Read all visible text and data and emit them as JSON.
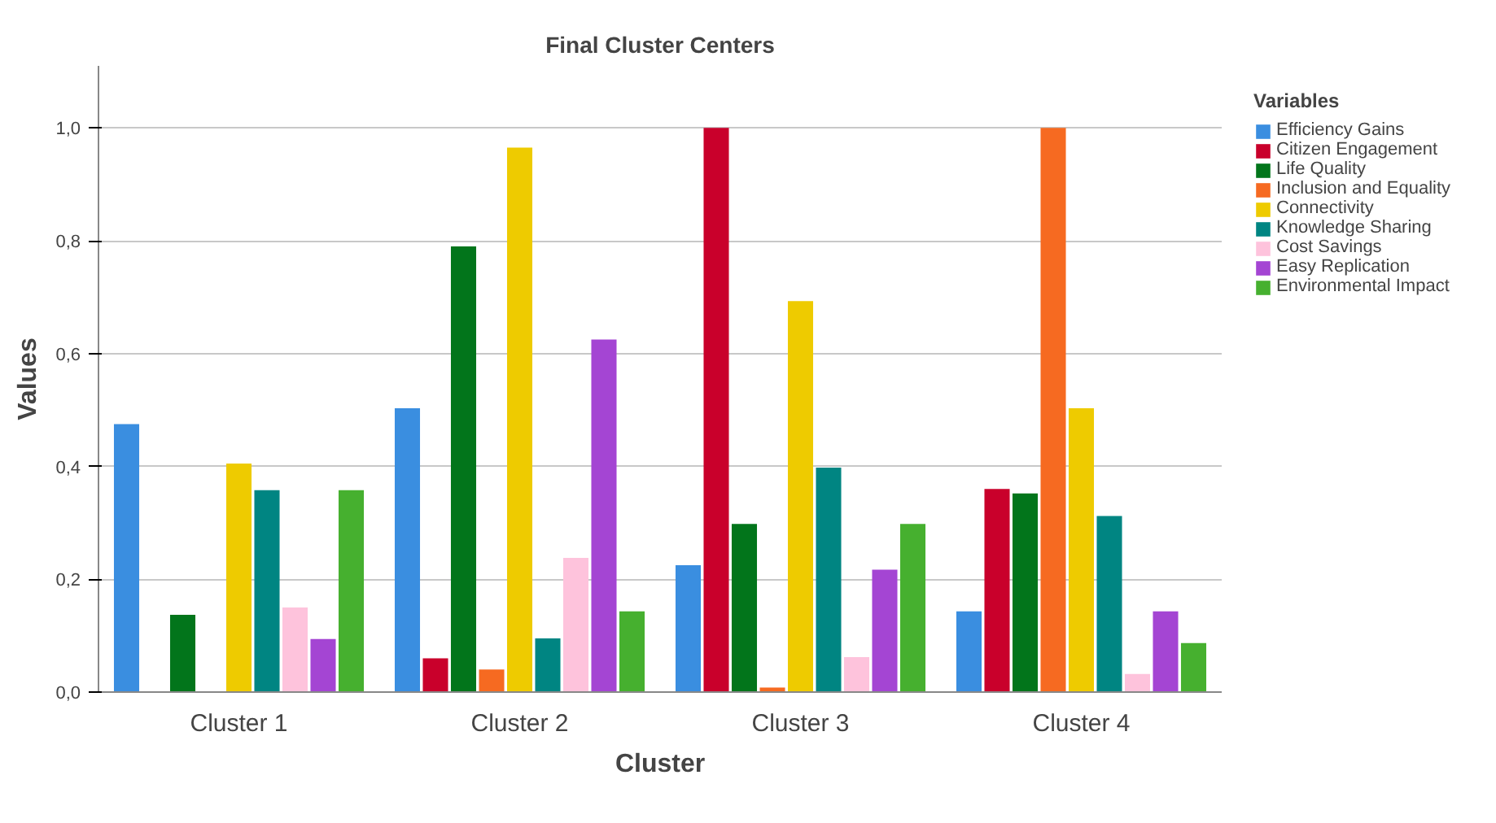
{
  "chart_data": {
    "type": "bar",
    "title": "Final Cluster Centers",
    "xlabel": "Cluster",
    "ylabel": "Values",
    "legend_title": "Variables",
    "categories": [
      "Cluster 1",
      "Cluster 2",
      "Cluster 3",
      "Cluster 4"
    ],
    "series": [
      {
        "name": "Efficiency Gains",
        "color": "#3a8ee0",
        "values": [
          0.475,
          0.503,
          0.225,
          0.143
        ]
      },
      {
        "name": "Citizen Engagement",
        "color": "#c9002b",
        "values": [
          0,
          0.06,
          1.0,
          0.36
        ]
      },
      {
        "name": "Life Quality",
        "color": "#02751b",
        "values": [
          0.137,
          0.79,
          0.298,
          0.352
        ]
      },
      {
        "name": "Inclusion and Equality",
        "color": "#f66a21",
        "values": [
          0,
          0.04,
          0.008,
          1.0
        ]
      },
      {
        "name": "Connectivity",
        "color": "#eecb00",
        "values": [
          0.405,
          0.965,
          0.693,
          0.503
        ]
      },
      {
        "name": "Knowledge Sharing",
        "color": "#008582",
        "values": [
          0.358,
          0.095,
          0.398,
          0.312
        ]
      },
      {
        "name": "Cost Savings",
        "color": "#fec3dc",
        "values": [
          0.15,
          0.238,
          0.062,
          0.032
        ]
      },
      {
        "name": "Easy Replication",
        "color": "#a445d3",
        "values": [
          0.094,
          0.625,
          0.217,
          0.143
        ]
      },
      {
        "name": "Environmental Impact",
        "color": "#46b02f",
        "values": [
          0.358,
          0.143,
          0.298,
          0.087
        ]
      }
    ],
    "ylim": [
      0,
      1.11
    ],
    "yticks": [
      {
        "value": 0,
        "label": "0,0"
      },
      {
        "value": 0.2,
        "label": "0,2"
      },
      {
        "value": 0.4,
        "label": "0,4"
      },
      {
        "value": 0.6,
        "label": "0,6"
      },
      {
        "value": 0.8,
        "label": "0,8"
      },
      {
        "value": 1.0,
        "label": "1,0"
      }
    ],
    "grid": "y",
    "legend": "top right"
  }
}
